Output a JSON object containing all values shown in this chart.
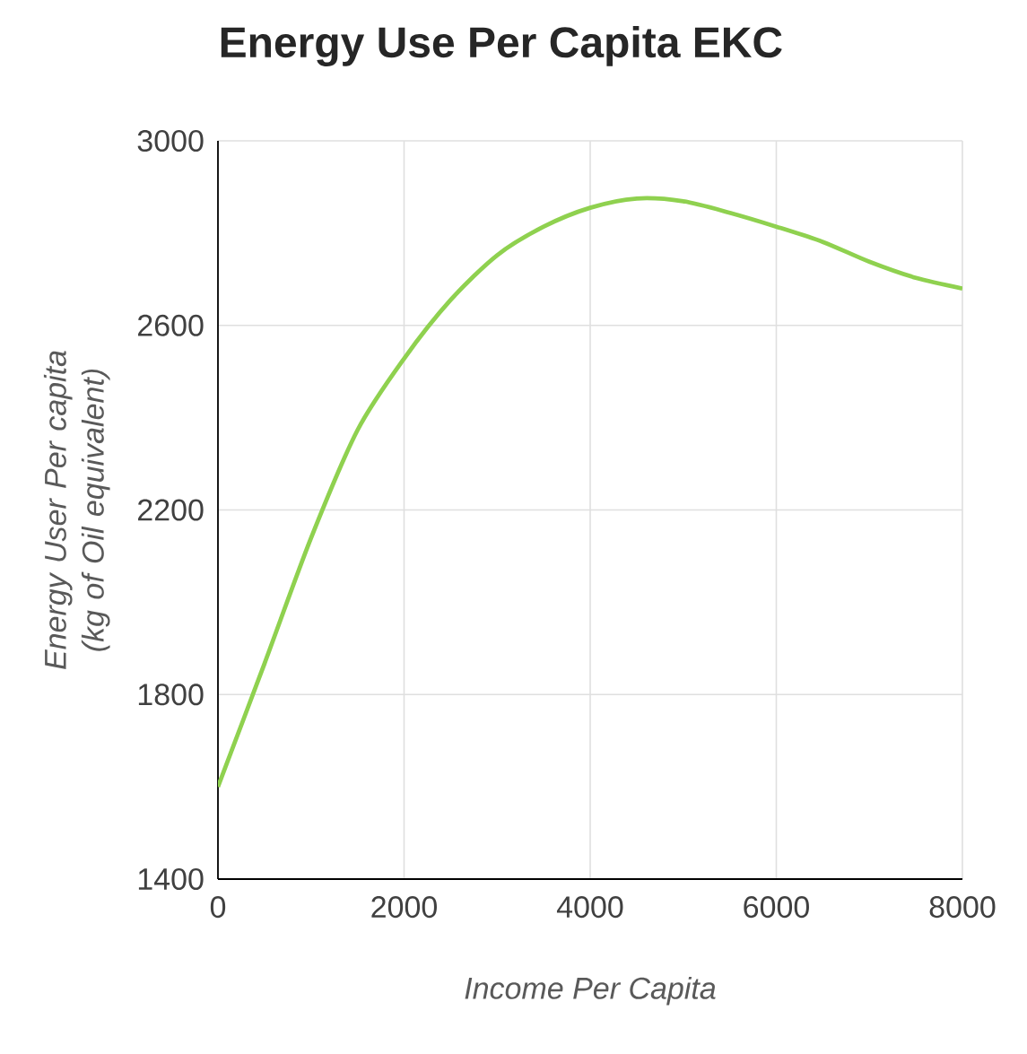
{
  "chart_data": {
    "type": "line",
    "title": "Energy Use Per Capita EKC",
    "xlabel": "Income Per Capita",
    "ylabel": "Energy User Per capita (kg of Oil equivalent)",
    "x": [
      0,
      500,
      1000,
      1500,
      2000,
      2500,
      3000,
      3500,
      4000,
      4500,
      5000,
      5500,
      6000,
      6500,
      7000,
      7500,
      8000
    ],
    "series": [
      {
        "color": "#8fd14f",
        "values": [
          1600,
          1867,
          2139,
          2373,
          2528,
          2655,
          2752,
          2814,
          2855,
          2875,
          2869,
          2844,
          2814,
          2781,
          2738,
          2703,
          2680
        ]
      }
    ],
    "xlim": [
      0,
      8000
    ],
    "ylim": [
      1400,
      3000
    ],
    "xticks": [
      0,
      2000,
      4000,
      6000,
      8000
    ],
    "yticks": [
      1400,
      1800,
      2200,
      2600,
      3000
    ],
    "grid": true
  }
}
